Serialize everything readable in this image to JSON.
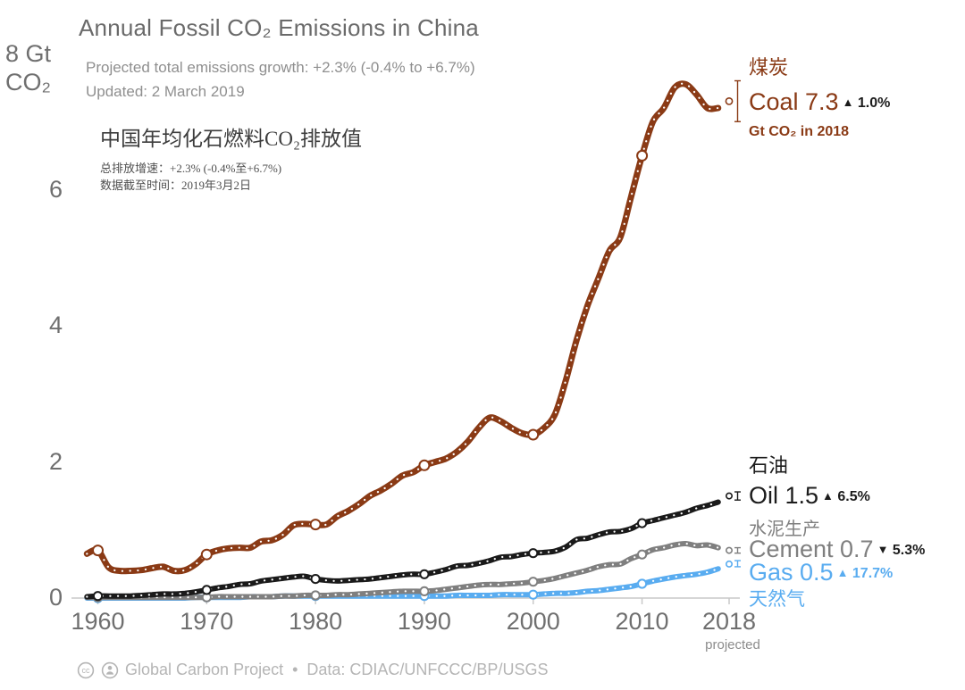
{
  "header": {
    "title": "Annual Fossil CO₂ Emissions in China",
    "subtitle_line1": "Projected total emissions growth: +2.3% (-0.4% to +6.7%)",
    "subtitle_line2": "Updated: 2 March 2019"
  },
  "annotation_cn": {
    "title": "中国年均化石燃料CO₂排放值",
    "line1": "总排放增速：+2.3% (-0.4%至+6.7%)",
    "line2": "数据截至时间：2019年3月2日"
  },
  "y_axis": {
    "top_line1": "8 Gt",
    "top_line2": "CO₂"
  },
  "legend": {
    "coal": {
      "cn": "煤炭",
      "label": "Coal 7.3",
      "arrow": "▲",
      "pct": "1.0%",
      "unit": "Gt CO₂ in 2018"
    },
    "oil": {
      "cn": "石油",
      "label": "Oil 1.5",
      "arrow": "▲",
      "pct": "6.5%"
    },
    "cement": {
      "cn": "水泥生产",
      "label": "Cement 0.7",
      "arrow": "▼",
      "pct": "5.3%"
    },
    "gas": {
      "cn": "天然气",
      "label": "Gas 0.5",
      "arrow": "▲",
      "pct": "17.7%"
    }
  },
  "footer": {
    "org": "Global Carbon Project",
    "separator": "•",
    "source": "Data: CDIAC/UNFCCC/BP/USGS"
  },
  "colors": {
    "coal": "#8a3a15",
    "oil": "#1a1a1a",
    "cement": "#7f7f7f",
    "gas": "#59acf0"
  },
  "chart_data": {
    "type": "line",
    "title": "Annual Fossil CO₂ Emissions in China",
    "ylabel": "Gt CO₂",
    "xlim": [
      1959,
      2018
    ],
    "ylim": [
      0,
      8
    ],
    "x_ticks": [
      1960,
      1970,
      1980,
      1990,
      2000,
      2010,
      2018
    ],
    "y_ticks": [
      0,
      2,
      4,
      6,
      8
    ],
    "marker_years": [
      1960,
      1970,
      1980,
      1990,
      2000,
      2010
    ],
    "projected_label": "projected",
    "legend_position": "right",
    "grid": false,
    "x": [
      1959,
      1960,
      1961,
      1962,
      1963,
      1964,
      1965,
      1966,
      1967,
      1968,
      1969,
      1970,
      1971,
      1972,
      1973,
      1974,
      1975,
      1976,
      1977,
      1978,
      1979,
      1980,
      1981,
      1982,
      1983,
      1984,
      1985,
      1986,
      1987,
      1988,
      1989,
      1990,
      1991,
      1992,
      1993,
      1994,
      1995,
      1996,
      1997,
      1998,
      1999,
      2000,
      2001,
      2002,
      2003,
      2004,
      2005,
      2006,
      2007,
      2008,
      2009,
      2010,
      2011,
      2012,
      2013,
      2014,
      2015,
      2016,
      2017,
      2018
    ],
    "series": [
      {
        "name": "Coal",
        "name_cn": "煤炭",
        "color": "#8a3a15",
        "value_2018": 7.3,
        "change_pct": "+1.0%",
        "range_2018": [
          7.0,
          7.6
        ],
        "values": [
          0.65,
          0.7,
          0.45,
          0.4,
          0.4,
          0.41,
          0.44,
          0.46,
          0.4,
          0.41,
          0.5,
          0.64,
          0.7,
          0.73,
          0.74,
          0.74,
          0.83,
          0.85,
          0.93,
          1.07,
          1.09,
          1.08,
          1.08,
          1.2,
          1.28,
          1.38,
          1.5,
          1.58,
          1.68,
          1.8,
          1.85,
          1.95,
          2.0,
          2.05,
          2.15,
          2.3,
          2.5,
          2.65,
          2.6,
          2.5,
          2.42,
          2.4,
          2.5,
          2.7,
          3.2,
          3.8,
          4.3,
          4.7,
          5.1,
          5.3,
          5.9,
          6.5,
          7.0,
          7.2,
          7.5,
          7.55,
          7.4,
          7.2,
          7.2,
          7.3
        ]
      },
      {
        "name": "Oil",
        "name_cn": "石油",
        "color": "#1a1a1a",
        "value_2018": 1.5,
        "change_pct": "+6.5%",
        "range_2018": [
          1.44,
          1.56
        ],
        "values": [
          0.02,
          0.03,
          0.03,
          0.03,
          0.03,
          0.04,
          0.05,
          0.06,
          0.06,
          0.07,
          0.09,
          0.12,
          0.15,
          0.17,
          0.2,
          0.21,
          0.25,
          0.27,
          0.29,
          0.31,
          0.32,
          0.28,
          0.26,
          0.25,
          0.26,
          0.27,
          0.28,
          0.3,
          0.32,
          0.34,
          0.35,
          0.35,
          0.38,
          0.42,
          0.47,
          0.48,
          0.51,
          0.55,
          0.6,
          0.61,
          0.64,
          0.66,
          0.67,
          0.69,
          0.75,
          0.86,
          0.88,
          0.93,
          0.97,
          0.98,
          1.02,
          1.1,
          1.14,
          1.18,
          1.22,
          1.26,
          1.32,
          1.36,
          1.41,
          1.5
        ]
      },
      {
        "name": "Cement",
        "name_cn": "水泥生产",
        "color": "#7f7f7f",
        "value_2018": 0.7,
        "change_pct": "-5.3%",
        "range_2018": [
          0.66,
          0.74
        ],
        "values": [
          0.01,
          0.01,
          0.01,
          0.01,
          0.01,
          0.01,
          0.01,
          0.01,
          0.01,
          0.01,
          0.01,
          0.01,
          0.02,
          0.02,
          0.02,
          0.02,
          0.02,
          0.02,
          0.03,
          0.03,
          0.04,
          0.04,
          0.04,
          0.05,
          0.05,
          0.06,
          0.07,
          0.08,
          0.09,
          0.1,
          0.1,
          0.1,
          0.11,
          0.13,
          0.15,
          0.17,
          0.19,
          0.2,
          0.2,
          0.21,
          0.22,
          0.24,
          0.26,
          0.29,
          0.33,
          0.37,
          0.41,
          0.46,
          0.49,
          0.5,
          0.58,
          0.64,
          0.71,
          0.74,
          0.78,
          0.8,
          0.77,
          0.78,
          0.74,
          0.7
        ]
      },
      {
        "name": "Gas",
        "name_cn": "天然气",
        "color": "#59acf0",
        "value_2018": 0.5,
        "change_pct": "+17.7%",
        "range_2018": [
          0.46,
          0.55
        ],
        "values": [
          0.0,
          0.0,
          0.0,
          0.0,
          0.0,
          0.0,
          0.0,
          0.0,
          0.0,
          0.0,
          0.01,
          0.01,
          0.01,
          0.01,
          0.01,
          0.02,
          0.02,
          0.02,
          0.03,
          0.03,
          0.03,
          0.03,
          0.03,
          0.03,
          0.03,
          0.03,
          0.03,
          0.03,
          0.03,
          0.03,
          0.03,
          0.03,
          0.03,
          0.03,
          0.04,
          0.04,
          0.04,
          0.04,
          0.05,
          0.05,
          0.05,
          0.05,
          0.06,
          0.07,
          0.07,
          0.08,
          0.1,
          0.11,
          0.13,
          0.15,
          0.17,
          0.21,
          0.25,
          0.28,
          0.31,
          0.33,
          0.35,
          0.38,
          0.43,
          0.5
        ]
      }
    ]
  }
}
